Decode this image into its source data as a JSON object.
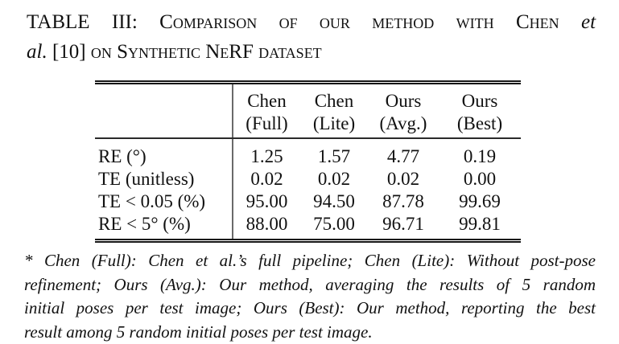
{
  "caption": {
    "label": "TABLE III:",
    "title_part1": "Comparison of our method with Chen",
    "etal_part1": "et",
    "etal_part2": "al.",
    "citation": "[10]",
    "title_part2": "on Synthetic NeRF dataset"
  },
  "table": {
    "columns": [
      {
        "line1": "Chen",
        "line2": "(Full)"
      },
      {
        "line1": "Chen",
        "line2": "(Lite)"
      },
      {
        "line1": "Ours",
        "line2": "(Avg.)"
      },
      {
        "line1": "Ours",
        "line2": "(Best)"
      }
    ],
    "rows": [
      {
        "label": "RE (°)",
        "values": [
          "1.25",
          "1.57",
          "4.77",
          "0.19"
        ]
      },
      {
        "label": "TE (unitless)",
        "values": [
          "0.02",
          "0.02",
          "0.02",
          "0.00"
        ]
      },
      {
        "label": "TE < 0.05 (%)",
        "values": [
          "95.00",
          "94.50",
          "87.78",
          "99.69"
        ]
      },
      {
        "label": "RE < 5° (%)",
        "values": [
          "88.00",
          "75.00",
          "96.71",
          "99.81"
        ]
      }
    ]
  },
  "footnote": {
    "lines": [
      "* Chen (Full): Chen et al.’s full pipeline; Chen (Lite): Without post-pose",
      "refinement; Ours (Avg.): Our method, averaging the results of 5 random",
      "initial poses per test image; Ours (Best): Our method, reporting the best",
      "result among 5 random initial poses per test image."
    ]
  },
  "colors": {
    "text": "#111111",
    "rule": "#161616",
    "background": "#ffffff"
  }
}
